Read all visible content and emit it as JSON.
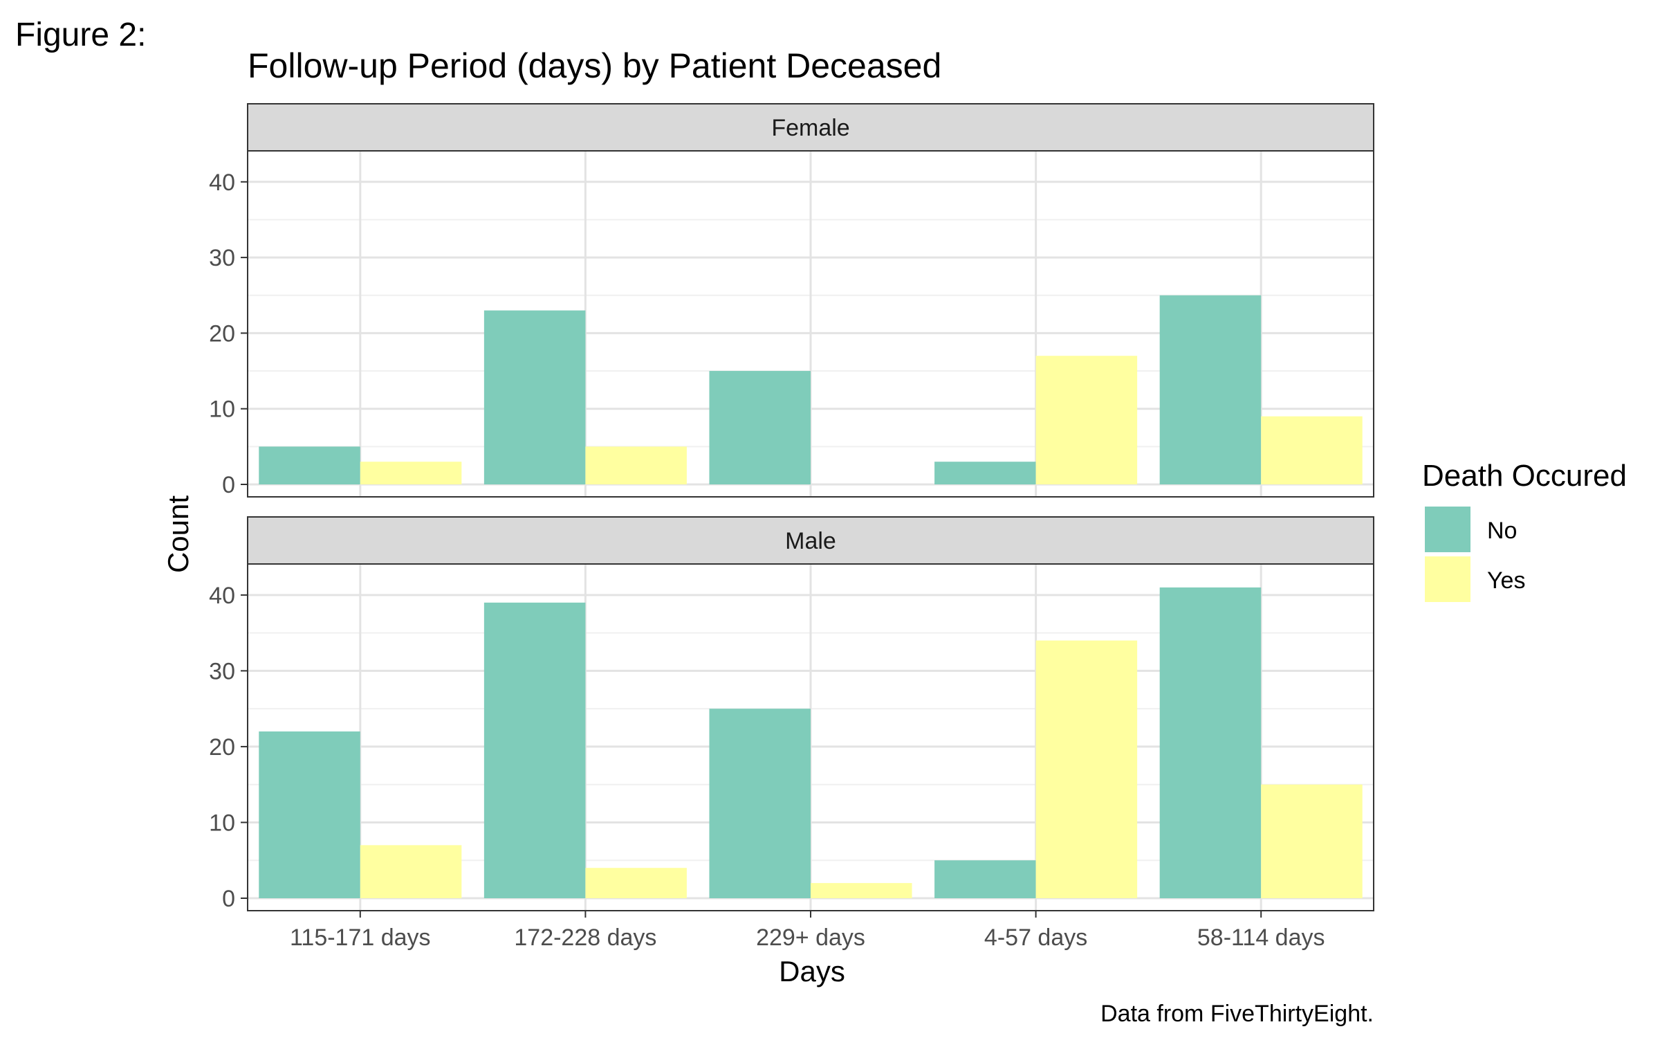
{
  "figure_label": "Figure 2:",
  "caption": "Data from FiveThirtyEight.",
  "chart_data": {
    "type": "bar",
    "title": "Follow-up Period (days) by Patient Deceased",
    "xlabel": "Days",
    "ylabel": "Count",
    "ylim": [
      0,
      43
    ],
    "yticks": [
      0,
      10,
      20,
      30,
      40
    ],
    "grid": true,
    "categories": [
      "115-171 days",
      "172-228 days",
      "229+ days",
      "4-57 days",
      "58-114 days"
    ],
    "legend": {
      "title": "Death Occured",
      "position": "right",
      "entries": [
        {
          "name": "No",
          "color": "#7fccba"
        },
        {
          "name": "Yes",
          "color": "#ffffa0"
        }
      ]
    },
    "facets": [
      {
        "name": "Female",
        "series": [
          {
            "name": "No",
            "values": [
              5,
              23,
              15,
              3,
              25
            ]
          },
          {
            "name": "Yes",
            "values": [
              3,
              5,
              0,
              17,
              9
            ]
          }
        ]
      },
      {
        "name": "Male",
        "series": [
          {
            "name": "No",
            "values": [
              22,
              39,
              25,
              5,
              41
            ]
          },
          {
            "name": "Yes",
            "values": [
              7,
              4,
              2,
              34,
              15
            ]
          }
        ]
      }
    ]
  }
}
